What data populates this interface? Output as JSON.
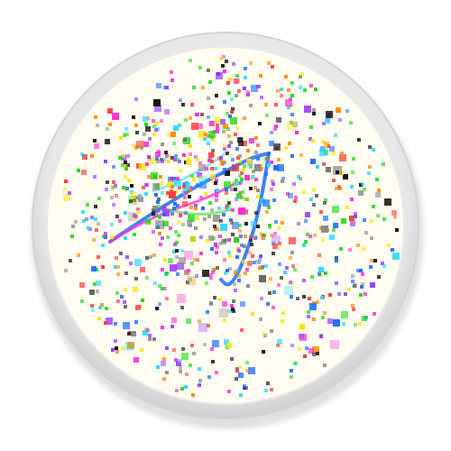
{
  "icon": {
    "name": "constellation-app-icon",
    "colors": {
      "rim_outer": "#d8d8d8",
      "rim_inner": "#ededed",
      "face": "#fffdf2",
      "shadow": "#bdbdbd"
    },
    "dot_palette": [
      "#ff2ad4",
      "#22d81a",
      "#ffe400",
      "#1e6bff",
      "#ff3b3b",
      "#2ad8ff",
      "#9a3bff",
      "#ff8a00",
      "#141414",
      "#8a8a8a"
    ],
    "line_colors": [
      "#1e6bff",
      "#ff2ad4",
      "#22d81a",
      "#2ad8ff",
      "#ffe400"
    ]
  }
}
